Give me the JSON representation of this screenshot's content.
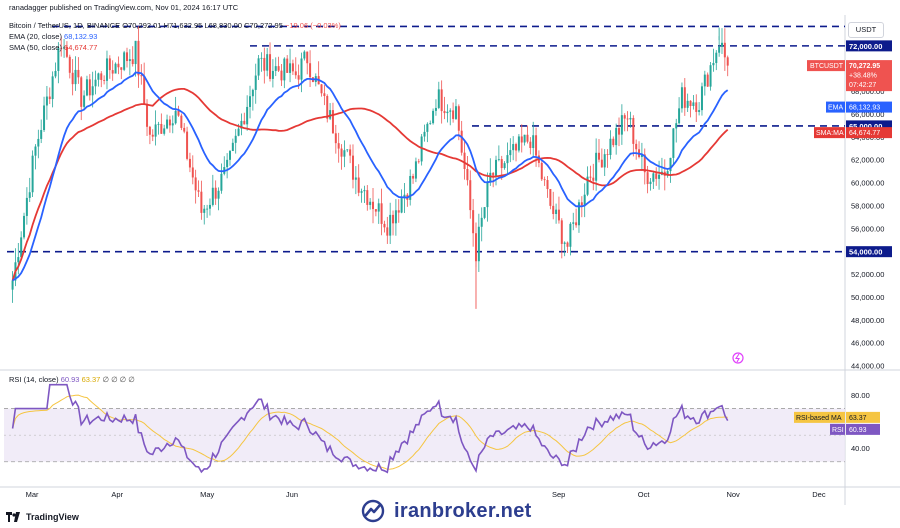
{
  "header": {
    "published": "ranadagger published on TradingView.com, Nov 01, 2024 16:17 UTC",
    "symbol": "Bitcoin / TetherUS, 1D, BINANCE",
    "o_label": "O",
    "o_value": "70,292.01",
    "h_label": "H",
    "h_value": "71,632.95",
    "l_label": "L",
    "l_value": "68,830.00",
    "c_label": "C",
    "c_value": "70,272.95",
    "change": "−19.06 (−0.03%)",
    "ema_label": "EMA (20, close)",
    "ema_value": "68,132.93",
    "sma_label": "SMA (50, close)",
    "sma_value": "64,674.77",
    "rsi_label": "RSI (14, close)",
    "rsi_value": "60.93",
    "rsi_ma_value": "63.37",
    "rsi_extra": "∅ ∅ ∅ ∅"
  },
  "currency_button": "USDT",
  "tags": {
    "btc_symbol": "BTCUSDT",
    "btc_price": "70,272.95",
    "btc_change": "+38.48%",
    "btc_time": "07:42:27",
    "ema_name": "EMA",
    "ema_price": "68,132.93",
    "sma_name": "SMA:MA",
    "sma_price": "64,674.77",
    "rsi_ma_name": "RSI-based MA",
    "rsi_ma_val": "63.37",
    "rsi_name": "RSI",
    "rsi_val": "60.93"
  },
  "levels": [
    {
      "label": "72,000.00",
      "value": 72000
    },
    {
      "label": "65,000.00",
      "value": 65000
    },
    {
      "label": "54,000.00",
      "value": 54000
    }
  ],
  "footer": {
    "tradingview": "TradingView",
    "watermark": "iranbroker.net"
  },
  "chart_data": {
    "type": "candlestick",
    "price_axis": {
      "ticks": [
        "72,000.00",
        "70,000.00",
        "68,000.00",
        "66,000.00",
        "64,000.00",
        "62,000.00",
        "60,000.00",
        "58,000.00",
        "56,000.00",
        "54,000.00",
        "52,000.00",
        "50,000.00",
        "48,000.00",
        "46,000.00",
        "44,000.00"
      ],
      "range": [
        44000,
        74000
      ]
    },
    "rsi_axis": {
      "ticks": [
        "80.00",
        "40.00"
      ],
      "range": [
        20,
        90
      ],
      "band": [
        30,
        70
      ]
    },
    "time_axis": [
      "Mar",
      "Apr",
      "May",
      "Jun",
      "Sep",
      "Oct",
      "Nov",
      "Dec"
    ],
    "resistance_levels": [
      73700,
      72000,
      65000,
      54000
    ],
    "close_path": [
      {
        "date": "2024-02-25",
        "close": 51500
      },
      {
        "date": "2024-03-04",
        "close": 63000
      },
      {
        "date": "2024-03-13",
        "close": 72500
      },
      {
        "date": "2024-03-20",
        "close": 67500
      },
      {
        "date": "2024-03-27",
        "close": 69500
      },
      {
        "date": "2024-04-08",
        "close": 71500
      },
      {
        "date": "2024-04-13",
        "close": 64000
      },
      {
        "date": "2024-04-22",
        "close": 66500
      },
      {
        "date": "2024-05-01",
        "close": 57500
      },
      {
        "date": "2024-05-10",
        "close": 61000
      },
      {
        "date": "2024-05-21",
        "close": 70500
      },
      {
        "date": "2024-06-03",
        "close": 69500
      },
      {
        "date": "2024-06-07",
        "close": 71000
      },
      {
        "date": "2024-06-13",
        "close": 66800
      },
      {
        "date": "2024-06-24",
        "close": 60500
      },
      {
        "date": "2024-07-05",
        "close": 56500
      },
      {
        "date": "2024-07-14",
        "close": 60500
      },
      {
        "date": "2024-07-22",
        "close": 67500
      },
      {
        "date": "2024-07-29",
        "close": 66500
      },
      {
        "date": "2024-08-05",
        "close": 54000
      },
      {
        "date": "2024-08-10",
        "close": 60500
      },
      {
        "date": "2024-08-24",
        "close": 64000
      },
      {
        "date": "2024-08-31",
        "close": 58000
      },
      {
        "date": "2024-09-06",
        "close": 54500
      },
      {
        "date": "2024-09-13",
        "close": 60500
      },
      {
        "date": "2024-09-27",
        "close": 65800
      },
      {
        "date": "2024-10-03",
        "close": 60800
      },
      {
        "date": "2024-10-10",
        "close": 61000
      },
      {
        "date": "2024-10-16",
        "close": 67500
      },
      {
        "date": "2024-10-22",
        "close": 67200
      },
      {
        "date": "2024-10-29",
        "close": 72500
      },
      {
        "date": "2024-11-01",
        "close": 70272.95
      }
    ],
    "series": [
      {
        "name": "EMA (20, close)",
        "color": "#2962ff",
        "last": 68132.93
      },
      {
        "name": "SMA (50, close)",
        "color": "#e53935",
        "last": 64674.77
      },
      {
        "name": "RSI (14, close)",
        "color": "#7e57c2",
        "last": 60.93
      },
      {
        "name": "RSI-based MA",
        "color": "#f5c542",
        "last": 63.37
      }
    ],
    "colors": {
      "up": "#26a69a",
      "down": "#ef5350",
      "level": "#0d1b8c",
      "grid": "#e0e3eb"
    }
  }
}
